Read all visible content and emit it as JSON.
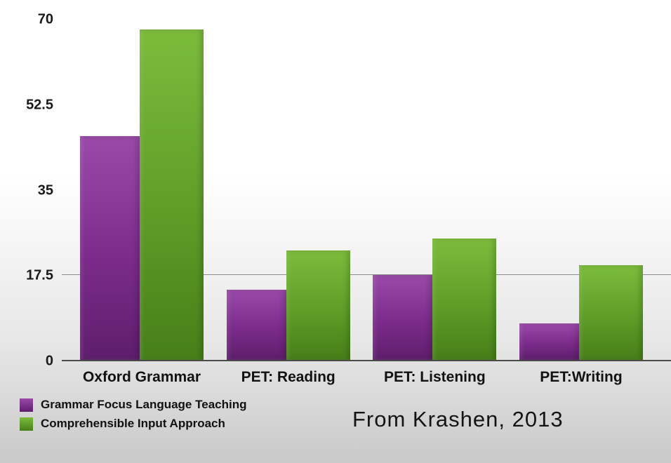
{
  "chart_data": {
    "type": "bar",
    "title": "",
    "xlabel": "",
    "ylabel": "",
    "categories": [
      "Oxford Grammar",
      "PET: Reading",
      "PET: Listening",
      "PET:Writing"
    ],
    "series": [
      {
        "name": "Grammar Focus Language Teaching",
        "color": "#7b2b8a",
        "gradient": [
          "#9a4aa8",
          "#7b2b8a",
          "#5e1e6c"
        ],
        "values": [
          46,
          14.5,
          17.5,
          7.5
        ]
      },
      {
        "name": "Comprehensible Input Approach",
        "color": "#5f9d28",
        "gradient": [
          "#7cbc3c",
          "#5f9d28",
          "#467f18"
        ],
        "values": [
          68,
          22.5,
          25,
          19.5
        ]
      }
    ],
    "ylim": [
      0,
      70
    ],
    "yticks": [
      0,
      17.5,
      35,
      52.5,
      70
    ],
    "gridlines": [
      17.5
    ],
    "legend_position": "bottom-left",
    "grid": "single horizontal gridline at 17.5, solid baseline at 0"
  },
  "annotation": {
    "source": "From Krashen, 2013"
  }
}
